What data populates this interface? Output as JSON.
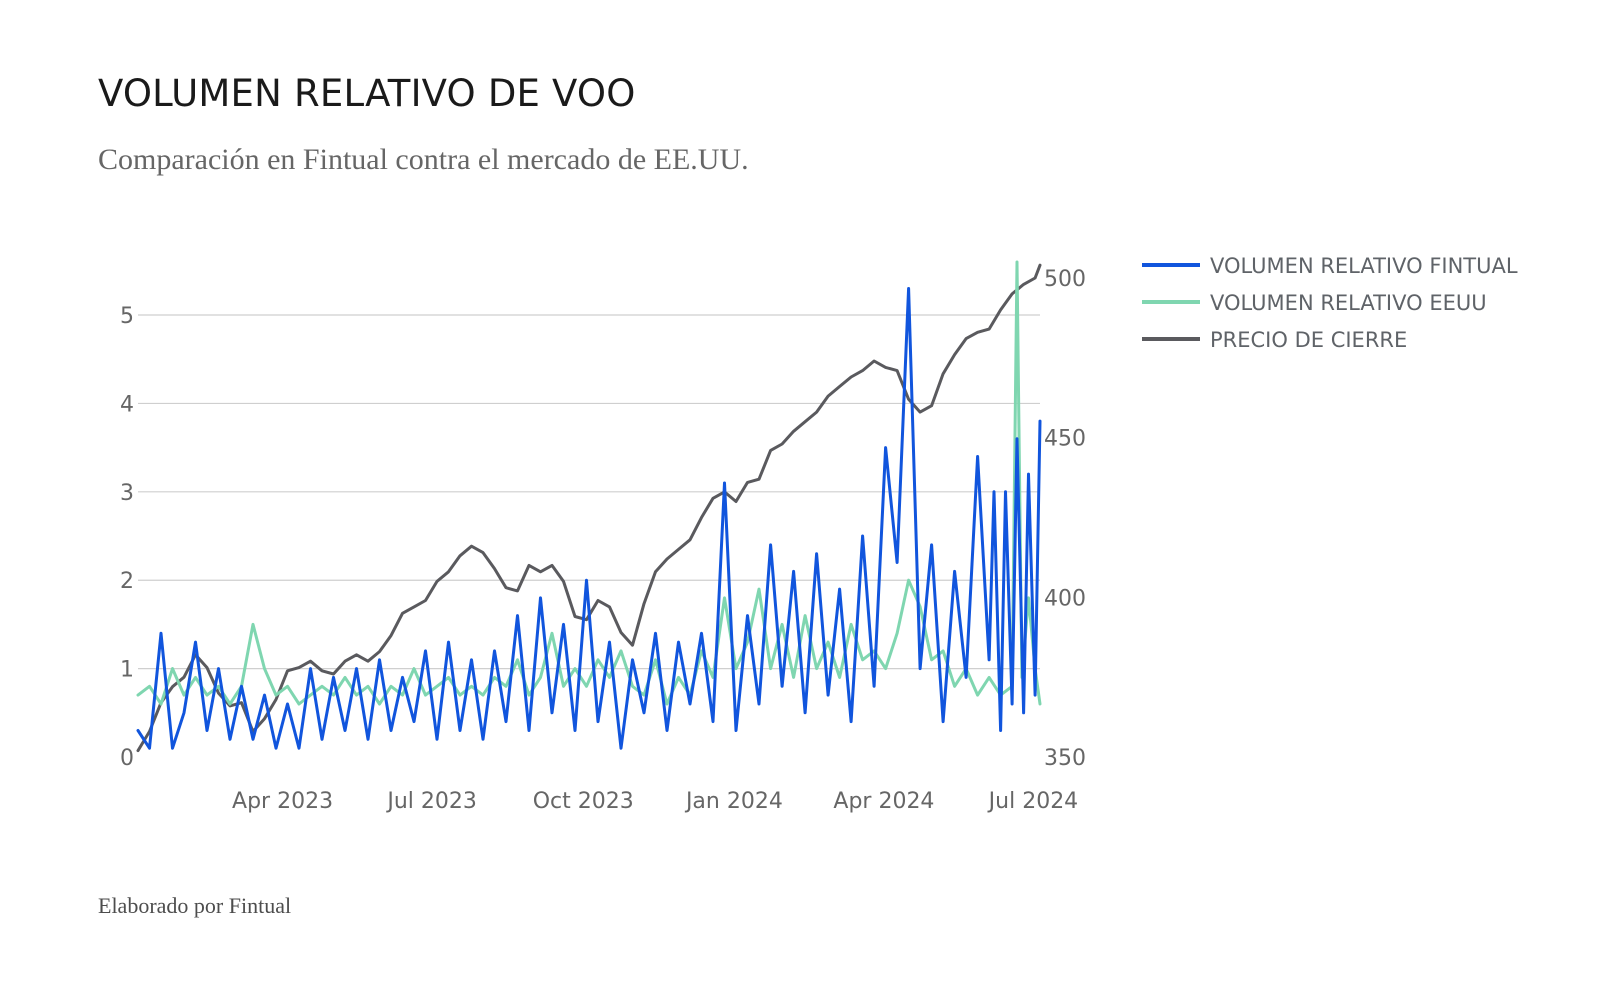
{
  "header": {
    "title": "VOLUMEN RELATIVO DE VOO",
    "subtitle": "Comparación en Fintual contra el mercado de EE.UU."
  },
  "footer": {
    "credit": "Elaborado por Fintual"
  },
  "chart_data": {
    "type": "line",
    "title": "VOLUMEN RELATIVO DE VOO",
    "subtitle": "Comparación en Fintual contra el mercado de EE.UU.",
    "x_range": [
      "2023-01-03",
      "2024-07-05"
    ],
    "x_ticks": [
      {
        "date": "2023-04-01",
        "label": "Apr 2023"
      },
      {
        "date": "2023-07-01",
        "label": "Jul 2023"
      },
      {
        "date": "2023-10-01",
        "label": "Oct 2023"
      },
      {
        "date": "2024-01-01",
        "label": "Jan 2024"
      },
      {
        "date": "2024-04-01",
        "label": "Apr 2024"
      },
      {
        "date": "2024-07-01",
        "label": "Jul 2024"
      }
    ],
    "y_left": {
      "range": [
        0,
        5.6
      ],
      "ticks": [
        "0",
        "1",
        "2",
        "3",
        "4",
        "5"
      ],
      "grid": true
    },
    "y_right": {
      "range": [
        350,
        505
      ],
      "ticks": [
        "350",
        "400",
        "450",
        "500"
      ]
    },
    "legend_position": "right",
    "series": [
      {
        "name": "VOLUMEN RELATIVO FINTUAL",
        "color": "#1155dd",
        "axis": "left",
        "points": [
          [
            "2023-01-03",
            0.3
          ],
          [
            "2023-01-10",
            0.1
          ],
          [
            "2023-01-17",
            1.4
          ],
          [
            "2023-01-24",
            0.1
          ],
          [
            "2023-01-31",
            0.5
          ],
          [
            "2023-02-07",
            1.3
          ],
          [
            "2023-02-14",
            0.3
          ],
          [
            "2023-02-21",
            1.0
          ],
          [
            "2023-02-28",
            0.2
          ],
          [
            "2023-03-07",
            0.8
          ],
          [
            "2023-03-14",
            0.2
          ],
          [
            "2023-03-21",
            0.7
          ],
          [
            "2023-03-28",
            0.1
          ],
          [
            "2023-04-04",
            0.6
          ],
          [
            "2023-04-11",
            0.1
          ],
          [
            "2023-04-18",
            1.0
          ],
          [
            "2023-04-25",
            0.2
          ],
          [
            "2023-05-02",
            0.9
          ],
          [
            "2023-05-09",
            0.3
          ],
          [
            "2023-05-16",
            1.0
          ],
          [
            "2023-05-23",
            0.2
          ],
          [
            "2023-05-30",
            1.1
          ],
          [
            "2023-06-06",
            0.3
          ],
          [
            "2023-06-13",
            0.9
          ],
          [
            "2023-06-20",
            0.4
          ],
          [
            "2023-06-27",
            1.2
          ],
          [
            "2023-07-04",
            0.2
          ],
          [
            "2023-07-11",
            1.3
          ],
          [
            "2023-07-18",
            0.3
          ],
          [
            "2023-07-25",
            1.1
          ],
          [
            "2023-08-01",
            0.2
          ],
          [
            "2023-08-08",
            1.2
          ],
          [
            "2023-08-15",
            0.4
          ],
          [
            "2023-08-22",
            1.6
          ],
          [
            "2023-08-29",
            0.3
          ],
          [
            "2023-09-05",
            1.8
          ],
          [
            "2023-09-12",
            0.5
          ],
          [
            "2023-09-19",
            1.5
          ],
          [
            "2023-09-26",
            0.3
          ],
          [
            "2023-10-03",
            2.0
          ],
          [
            "2023-10-10",
            0.4
          ],
          [
            "2023-10-17",
            1.3
          ],
          [
            "2023-10-24",
            0.1
          ],
          [
            "2023-10-31",
            1.1
          ],
          [
            "2023-11-07",
            0.5
          ],
          [
            "2023-11-14",
            1.4
          ],
          [
            "2023-11-21",
            0.3
          ],
          [
            "2023-11-28",
            1.3
          ],
          [
            "2023-12-05",
            0.6
          ],
          [
            "2023-12-12",
            1.4
          ],
          [
            "2023-12-19",
            0.4
          ],
          [
            "2023-12-26",
            3.1
          ],
          [
            "2024-01-02",
            0.3
          ],
          [
            "2024-01-09",
            1.6
          ],
          [
            "2024-01-16",
            0.6
          ],
          [
            "2024-01-23",
            2.4
          ],
          [
            "2024-01-30",
            0.8
          ],
          [
            "2024-02-06",
            2.1
          ],
          [
            "2024-02-13",
            0.5
          ],
          [
            "2024-02-20",
            2.3
          ],
          [
            "2024-02-27",
            0.7
          ],
          [
            "2024-03-05",
            1.9
          ],
          [
            "2024-03-12",
            0.4
          ],
          [
            "2024-03-19",
            2.5
          ],
          [
            "2024-03-26",
            0.8
          ],
          [
            "2024-04-02",
            3.5
          ],
          [
            "2024-04-09",
            2.2
          ],
          [
            "2024-04-16",
            5.3
          ],
          [
            "2024-04-23",
            1.0
          ],
          [
            "2024-04-30",
            2.4
          ],
          [
            "2024-05-07",
            0.4
          ],
          [
            "2024-05-14",
            2.1
          ],
          [
            "2024-05-21",
            0.9
          ],
          [
            "2024-05-28",
            3.4
          ],
          [
            "2024-06-04",
            1.1
          ],
          [
            "2024-06-07",
            3.0
          ],
          [
            "2024-06-11",
            0.3
          ],
          [
            "2024-06-14",
            3.0
          ],
          [
            "2024-06-18",
            0.6
          ],
          [
            "2024-06-21",
            3.6
          ],
          [
            "2024-06-25",
            0.5
          ],
          [
            "2024-06-28",
            3.2
          ],
          [
            "2024-07-02",
            0.7
          ],
          [
            "2024-07-05",
            3.8
          ]
        ]
      },
      {
        "name": "VOLUMEN RELATIVO EEUU",
        "color": "#7fd6b0",
        "axis": "left",
        "points": [
          [
            "2023-01-03",
            0.7
          ],
          [
            "2023-01-10",
            0.8
          ],
          [
            "2023-01-17",
            0.6
          ],
          [
            "2023-01-24",
            1.0
          ],
          [
            "2023-01-31",
            0.7
          ],
          [
            "2023-02-07",
            0.9
          ],
          [
            "2023-02-14",
            0.7
          ],
          [
            "2023-02-21",
            0.8
          ],
          [
            "2023-02-28",
            0.6
          ],
          [
            "2023-03-07",
            0.8
          ],
          [
            "2023-03-14",
            1.5
          ],
          [
            "2023-03-21",
            1.0
          ],
          [
            "2023-03-28",
            0.7
          ],
          [
            "2023-04-04",
            0.8
          ],
          [
            "2023-04-11",
            0.6
          ],
          [
            "2023-04-18",
            0.7
          ],
          [
            "2023-04-25",
            0.8
          ],
          [
            "2023-05-02",
            0.7
          ],
          [
            "2023-05-09",
            0.9
          ],
          [
            "2023-05-16",
            0.7
          ],
          [
            "2023-05-23",
            0.8
          ],
          [
            "2023-05-30",
            0.6
          ],
          [
            "2023-06-06",
            0.8
          ],
          [
            "2023-06-13",
            0.7
          ],
          [
            "2023-06-20",
            1.0
          ],
          [
            "2023-06-27",
            0.7
          ],
          [
            "2023-07-04",
            0.8
          ],
          [
            "2023-07-11",
            0.9
          ],
          [
            "2023-07-18",
            0.7
          ],
          [
            "2023-07-25",
            0.8
          ],
          [
            "2023-08-01",
            0.7
          ],
          [
            "2023-08-08",
            0.9
          ],
          [
            "2023-08-15",
            0.8
          ],
          [
            "2023-08-22",
            1.1
          ],
          [
            "2023-08-29",
            0.7
          ],
          [
            "2023-09-05",
            0.9
          ],
          [
            "2023-09-12",
            1.4
          ],
          [
            "2023-09-19",
            0.8
          ],
          [
            "2023-09-26",
            1.0
          ],
          [
            "2023-10-03",
            0.8
          ],
          [
            "2023-10-10",
            1.1
          ],
          [
            "2023-10-17",
            0.9
          ],
          [
            "2023-10-24",
            1.2
          ],
          [
            "2023-10-31",
            0.8
          ],
          [
            "2023-11-07",
            0.7
          ],
          [
            "2023-11-14",
            1.1
          ],
          [
            "2023-11-21",
            0.6
          ],
          [
            "2023-11-28",
            0.9
          ],
          [
            "2023-12-05",
            0.7
          ],
          [
            "2023-12-12",
            1.2
          ],
          [
            "2023-12-19",
            0.9
          ],
          [
            "2023-12-26",
            1.8
          ],
          [
            "2024-01-02",
            1.0
          ],
          [
            "2024-01-09",
            1.3
          ],
          [
            "2024-01-16",
            1.9
          ],
          [
            "2024-01-23",
            1.0
          ],
          [
            "2024-01-30",
            1.5
          ],
          [
            "2024-02-06",
            0.9
          ],
          [
            "2024-02-13",
            1.6
          ],
          [
            "2024-02-20",
            1.0
          ],
          [
            "2024-02-27",
            1.3
          ],
          [
            "2024-03-05",
            0.9
          ],
          [
            "2024-03-12",
            1.5
          ],
          [
            "2024-03-19",
            1.1
          ],
          [
            "2024-03-26",
            1.2
          ],
          [
            "2024-04-02",
            1.0
          ],
          [
            "2024-04-09",
            1.4
          ],
          [
            "2024-04-16",
            2.0
          ],
          [
            "2024-04-23",
            1.7
          ],
          [
            "2024-04-30",
            1.1
          ],
          [
            "2024-05-07",
            1.2
          ],
          [
            "2024-05-14",
            0.8
          ],
          [
            "2024-05-21",
            1.0
          ],
          [
            "2024-05-28",
            0.7
          ],
          [
            "2024-06-04",
            0.9
          ],
          [
            "2024-06-11",
            0.7
          ],
          [
            "2024-06-18",
            0.8
          ],
          [
            "2024-06-21",
            5.6
          ],
          [
            "2024-06-24",
            0.9
          ],
          [
            "2024-06-28",
            1.8
          ],
          [
            "2024-07-02",
            1.0
          ],
          [
            "2024-07-05",
            0.6
          ]
        ]
      },
      {
        "name": "PRECIO DE CIERRE",
        "color": "#5a5a5e",
        "axis": "right",
        "points": [
          [
            "2023-01-03",
            352
          ],
          [
            "2023-01-10",
            358
          ],
          [
            "2023-01-17",
            367
          ],
          [
            "2023-01-24",
            372
          ],
          [
            "2023-01-31",
            375
          ],
          [
            "2023-02-07",
            382
          ],
          [
            "2023-02-14",
            378
          ],
          [
            "2023-02-21",
            370
          ],
          [
            "2023-02-28",
            366
          ],
          [
            "2023-03-07",
            367
          ],
          [
            "2023-03-14",
            358
          ],
          [
            "2023-03-21",
            362
          ],
          [
            "2023-03-28",
            368
          ],
          [
            "2023-04-04",
            377
          ],
          [
            "2023-04-11",
            378
          ],
          [
            "2023-04-18",
            380
          ],
          [
            "2023-04-25",
            377
          ],
          [
            "2023-05-02",
            376
          ],
          [
            "2023-05-09",
            380
          ],
          [
            "2023-05-16",
            382
          ],
          [
            "2023-05-23",
            380
          ],
          [
            "2023-05-30",
            383
          ],
          [
            "2023-06-06",
            388
          ],
          [
            "2023-06-13",
            395
          ],
          [
            "2023-06-20",
            397
          ],
          [
            "2023-06-27",
            399
          ],
          [
            "2023-07-04",
            405
          ],
          [
            "2023-07-11",
            408
          ],
          [
            "2023-07-18",
            413
          ],
          [
            "2023-07-25",
            416
          ],
          [
            "2023-08-01",
            414
          ],
          [
            "2023-08-08",
            409
          ],
          [
            "2023-08-15",
            403
          ],
          [
            "2023-08-22",
            402
          ],
          [
            "2023-08-29",
            410
          ],
          [
            "2023-09-05",
            408
          ],
          [
            "2023-09-12",
            410
          ],
          [
            "2023-09-19",
            405
          ],
          [
            "2023-09-26",
            394
          ],
          [
            "2023-10-03",
            393
          ],
          [
            "2023-10-10",
            399
          ],
          [
            "2023-10-17",
            397
          ],
          [
            "2023-10-24",
            389
          ],
          [
            "2023-10-31",
            385
          ],
          [
            "2023-11-07",
            398
          ],
          [
            "2023-11-14",
            408
          ],
          [
            "2023-11-21",
            412
          ],
          [
            "2023-11-28",
            415
          ],
          [
            "2023-12-05",
            418
          ],
          [
            "2023-12-12",
            425
          ],
          [
            "2023-12-19",
            431
          ],
          [
            "2023-12-26",
            433
          ],
          [
            "2024-01-02",
            430
          ],
          [
            "2024-01-09",
            436
          ],
          [
            "2024-01-16",
            437
          ],
          [
            "2024-01-23",
            446
          ],
          [
            "2024-01-30",
            448
          ],
          [
            "2024-02-06",
            452
          ],
          [
            "2024-02-13",
            455
          ],
          [
            "2024-02-20",
            458
          ],
          [
            "2024-02-27",
            463
          ],
          [
            "2024-03-05",
            466
          ],
          [
            "2024-03-12",
            469
          ],
          [
            "2024-03-19",
            471
          ],
          [
            "2024-03-26",
            474
          ],
          [
            "2024-04-02",
            472
          ],
          [
            "2024-04-09",
            471
          ],
          [
            "2024-04-16",
            462
          ],
          [
            "2024-04-23",
            458
          ],
          [
            "2024-04-30",
            460
          ],
          [
            "2024-05-07",
            470
          ],
          [
            "2024-05-14",
            476
          ],
          [
            "2024-05-21",
            481
          ],
          [
            "2024-05-28",
            483
          ],
          [
            "2024-06-04",
            484
          ],
          [
            "2024-06-11",
            490
          ],
          [
            "2024-06-18",
            495
          ],
          [
            "2024-06-25",
            498
          ],
          [
            "2024-07-02",
            500
          ],
          [
            "2024-07-05",
            504
          ]
        ]
      }
    ]
  }
}
